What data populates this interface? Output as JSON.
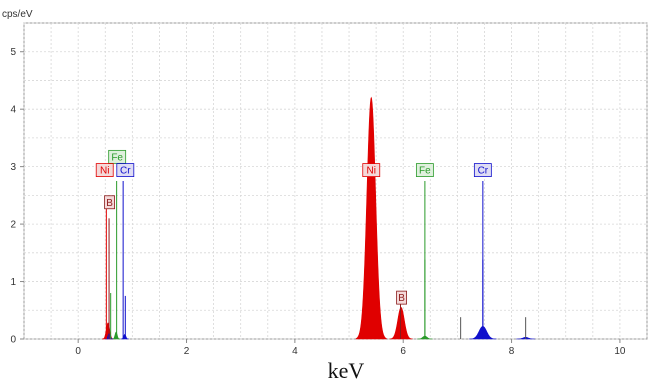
{
  "chart_data": {
    "type": "line",
    "title": "",
    "unit_label": "cps/eV",
    "xlabel": "keV",
    "ylabel": "",
    "xlim": [
      -1,
      10.5
    ],
    "ylim": [
      0,
      5.5
    ],
    "x_ticks": [
      0,
      2,
      4,
      6,
      8,
      10
    ],
    "y_ticks": [
      0,
      1,
      2,
      3,
      4,
      5
    ],
    "grid": true,
    "colors": {
      "Ni": "#e00000",
      "Fe": "#2a9a2a",
      "Cr": "#1010cc",
      "B": "#8b1a1a",
      "other": "#555555"
    },
    "series": [
      {
        "name": "Ni",
        "peaks": [
          {
            "x": 0.55,
            "y": 0.28,
            "w": 0.03
          },
          {
            "x": 5.41,
            "y": 4.2,
            "w": 0.08
          },
          {
            "x": 5.96,
            "y": 0.55,
            "w": 0.06
          }
        ]
      },
      {
        "name": "Fe",
        "peaks": [
          {
            "x": 0.7,
            "y": 0.12,
            "w": 0.02
          },
          {
            "x": 6.4,
            "y": 0.05,
            "w": 0.04
          }
        ]
      },
      {
        "name": "Cr",
        "peaks": [
          {
            "x": 0.57,
            "y": 0.1,
            "w": 0.02
          },
          {
            "x": 0.86,
            "y": 0.08,
            "w": 0.02
          },
          {
            "x": 7.47,
            "y": 0.22,
            "w": 0.07
          },
          {
            "x": 8.26,
            "y": 0.03,
            "w": 0.05
          }
        ]
      }
    ],
    "element_lines": [
      {
        "element": "Ni",
        "lines": [
          {
            "x": 0.52,
            "y": 2.3
          },
          {
            "x": 5.41,
            "y": 4.2
          }
        ]
      },
      {
        "element": "Fe",
        "lines": [
          {
            "x": 0.6,
            "y": 0.8
          },
          {
            "x": 0.71,
            "y": 2.75
          },
          {
            "x": 6.4,
            "y": 2.75
          },
          {
            "x": 6.4,
            "y": 1.38
          }
        ]
      },
      {
        "element": "Cr",
        "lines": [
          {
            "x": 0.83,
            "y": 2.75
          },
          {
            "x": 0.87,
            "y": 0.75
          },
          {
            "x": 7.47,
            "y": 2.75
          },
          {
            "x": 7.47,
            "y": 1.38
          }
        ]
      },
      {
        "element": "B",
        "lines": [
          {
            "x": 0.57,
            "y": 2.1
          },
          {
            "x": 5.95,
            "y": 0.6
          }
        ]
      },
      {
        "element": "other",
        "lines": [
          {
            "x": 7.06,
            "y": 0.38
          },
          {
            "x": 8.26,
            "y": 0.38
          }
        ]
      }
    ],
    "tags": [
      {
        "label": "Fe",
        "element": "Fe",
        "x": 0.72,
        "y": 3.17
      },
      {
        "label": "Ni",
        "element": "Ni",
        "x": 0.49,
        "y": 2.94
      },
      {
        "label": "Cr",
        "element": "Cr",
        "x": 0.87,
        "y": 2.94
      },
      {
        "label": "B",
        "element": "B",
        "x": 0.58,
        "y": 2.38
      },
      {
        "label": "Ni",
        "element": "Ni",
        "x": 5.41,
        "y": 2.94
      },
      {
        "label": "B",
        "element": "B",
        "x": 5.97,
        "y": 0.72
      },
      {
        "label": "Fe",
        "element": "Fe",
        "x": 6.4,
        "y": 2.94
      },
      {
        "label": "Cr",
        "element": "Cr",
        "x": 7.47,
        "y": 2.94
      }
    ]
  }
}
